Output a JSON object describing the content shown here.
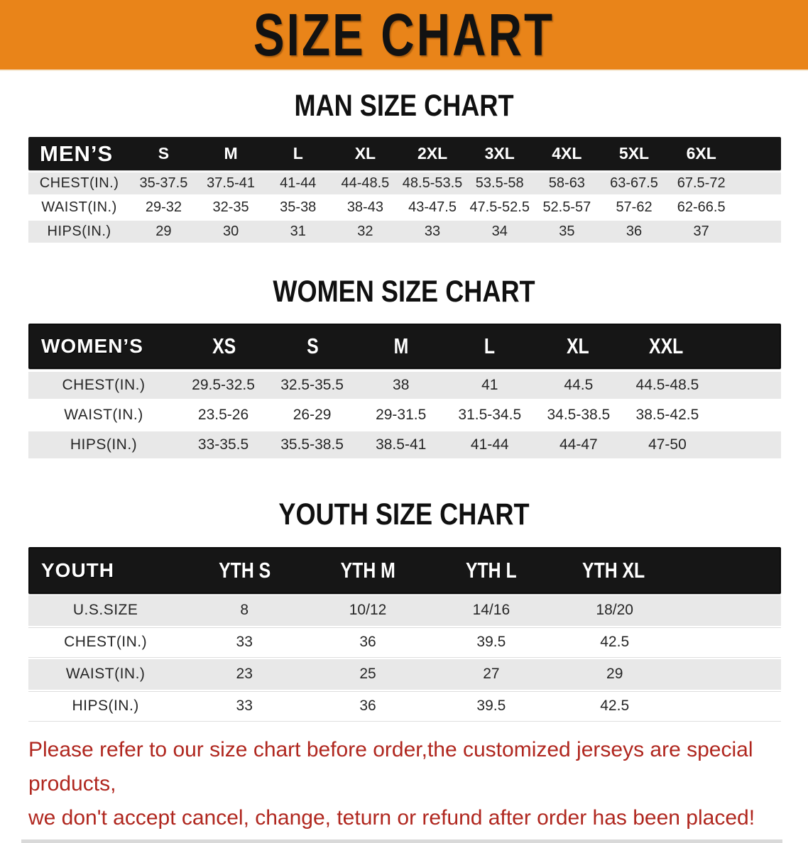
{
  "banner": {
    "title": "SIZE CHART",
    "bg_color": "#E98419",
    "text_color": "#121212"
  },
  "colors": {
    "header_bar": "#161616",
    "row_shade": "#E8E8E8",
    "notice_red": "#B0271F"
  },
  "tables": {
    "men": {
      "section_title": "MAN SIZE CHART",
      "label": "MEN’S",
      "columns": [
        "S",
        "M",
        "L",
        "XL",
        "2XL",
        "3XL",
        "4XL",
        "5XL",
        "6XL"
      ],
      "rows": [
        {
          "label": "CHEST(IN.)",
          "values": [
            "35-37.5",
            "37.5-41",
            "41-44",
            "44-48.5",
            "48.5-53.5",
            "53.5-58",
            "58-63",
            "63-67.5",
            "67.5-72"
          ]
        },
        {
          "label": "WAIST(IN.)",
          "values": [
            "29-32",
            "32-35",
            "35-38",
            "38-43",
            "43-47.5",
            "47.5-52.5",
            "52.5-57",
            "57-62",
            "62-66.5"
          ]
        },
        {
          "label": "HIPS(IN.)",
          "values": [
            "29",
            "30",
            "31",
            "32",
            "33",
            "34",
            "35",
            "36",
            "37"
          ]
        }
      ]
    },
    "women": {
      "section_title": "WOMEN SIZE CHART",
      "label": "WOMEN’S",
      "columns": [
        "XS",
        "S",
        "M",
        "L",
        "XL",
        "XXL"
      ],
      "rows": [
        {
          "label": "CHEST(IN.)",
          "values": [
            "29.5-32.5",
            "32.5-35.5",
            "38",
            "41",
            "44.5",
            "44.5-48.5"
          ]
        },
        {
          "label": "WAIST(IN.)",
          "values": [
            "23.5-26",
            "26-29",
            "29-31.5",
            "31.5-34.5",
            "34.5-38.5",
            "38.5-42.5"
          ]
        },
        {
          "label": "HIPS(IN.)",
          "values": [
            "33-35.5",
            "35.5-38.5",
            "38.5-41",
            "41-44",
            "44-47",
            "47-50"
          ]
        }
      ]
    },
    "youth": {
      "section_title": "YOUTH SIZE CHART",
      "label": "YOUTH",
      "columns": [
        "YTH S",
        "YTH M",
        "YTH L",
        "YTH XL"
      ],
      "rows": [
        {
          "label": "U.S.SIZE",
          "values": [
            "8",
            "10/12",
            "14/16",
            "18/20"
          ]
        },
        {
          "label": "CHEST(IN.)",
          "values": [
            "33",
            "36",
            "39.5",
            "42.5"
          ]
        },
        {
          "label": "WAIST(IN.)",
          "values": [
            "23",
            "25",
            "27",
            "29"
          ]
        },
        {
          "label": "HIPS(IN.)",
          "values": [
            "33",
            "36",
            "39.5",
            "42.5"
          ]
        }
      ]
    }
  },
  "footer": {
    "line1": "Please refer to our size chart before order,the customized jerseys are special products,",
    "line2": "we don't accept cancel, change, teturn or refund after order has been placed!"
  }
}
